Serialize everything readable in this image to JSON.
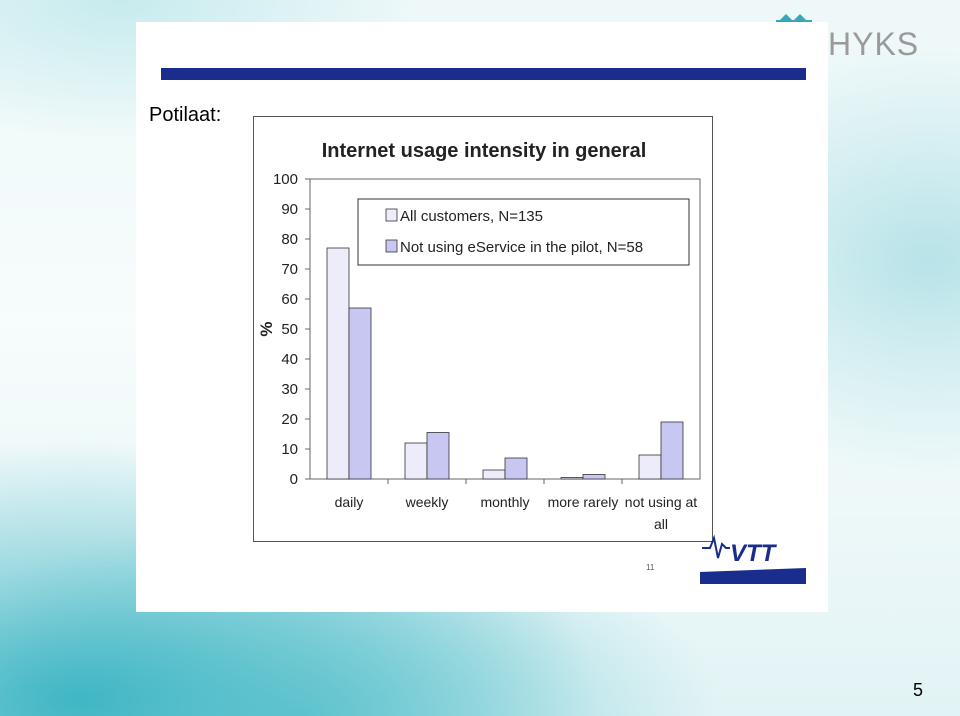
{
  "slide": {
    "heading": "Potilaat:",
    "logo_text": "HYKS",
    "slide_number": "5",
    "footnote": "11",
    "vtt_logo_text": "VTT",
    "colors": {
      "bar_navy": "#1a2d8c",
      "series1": "#ececfb",
      "series2": "#c7c7f2"
    }
  },
  "chart_data": {
    "type": "bar",
    "title": "Internet usage intensity in general",
    "ylabel": "%",
    "xlabel": "",
    "ylim": [
      0,
      100
    ],
    "yticks": [
      0,
      10,
      20,
      30,
      40,
      50,
      60,
      70,
      80,
      90,
      100
    ],
    "grid": false,
    "legend_position": "top-right",
    "categories": [
      [
        "daily"
      ],
      [
        "weekly"
      ],
      [
        "monthly"
      ],
      [
        "more rarely"
      ],
      [
        "not using at",
        "all"
      ]
    ],
    "series": [
      {
        "name": "All customers, N=135",
        "values": [
          77,
          12,
          3,
          0.5,
          8
        ],
        "color": "#ececfb"
      },
      {
        "name": "Not using eService in the pilot, N=58",
        "values": [
          57,
          15.5,
          7,
          1.5,
          19
        ],
        "color": "#c7c7f2"
      }
    ]
  }
}
